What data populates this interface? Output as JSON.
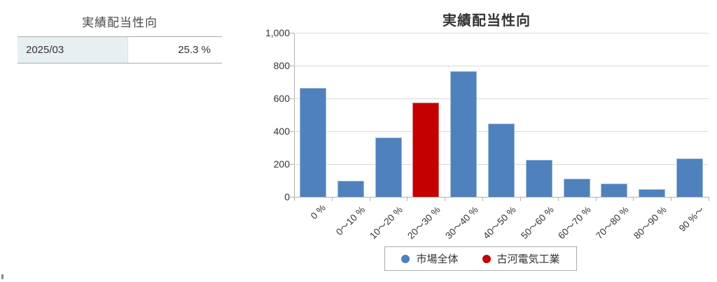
{
  "summary_table": {
    "title": "実績配当性向",
    "period": "2025/03",
    "value": "25.3 %"
  },
  "chart_data": {
    "type": "bar",
    "title": "実績配当性向",
    "categories": [
      "0 %",
      "0～10 %",
      "10～20 %",
      "20～30 %",
      "30～40 %",
      "40～50 %",
      "50～60 %",
      "60～70 %",
      "70～80 %",
      "80～90 %",
      "90 %～"
    ],
    "values": [
      665,
      100,
      360,
      575,
      765,
      445,
      225,
      110,
      80,
      45,
      235
    ],
    "highlight_index": 3,
    "highlight_category": "20～30 %",
    "series": [
      {
        "name": "市場全体",
        "color": "#4f81bd"
      },
      {
        "name": "古河電気工業",
        "color": "#c40000"
      }
    ],
    "legend": [
      "市場全体",
      "古河電気工業"
    ],
    "xlabel": "",
    "ylabel": "",
    "ylim": [
      0,
      1000
    ],
    "yticks": [
      0,
      200,
      400,
      600,
      800,
      1000
    ],
    "ytick_labels": [
      "0",
      "200",
      "400",
      "600",
      "800",
      "1,000"
    ],
    "grid": true,
    "legend_position": "bottom",
    "colors": {
      "gridline": "#d9d9d9",
      "axis": "#b3b3b3",
      "text": "#333333",
      "table_cell_bg": "#e6f0f2"
    }
  }
}
